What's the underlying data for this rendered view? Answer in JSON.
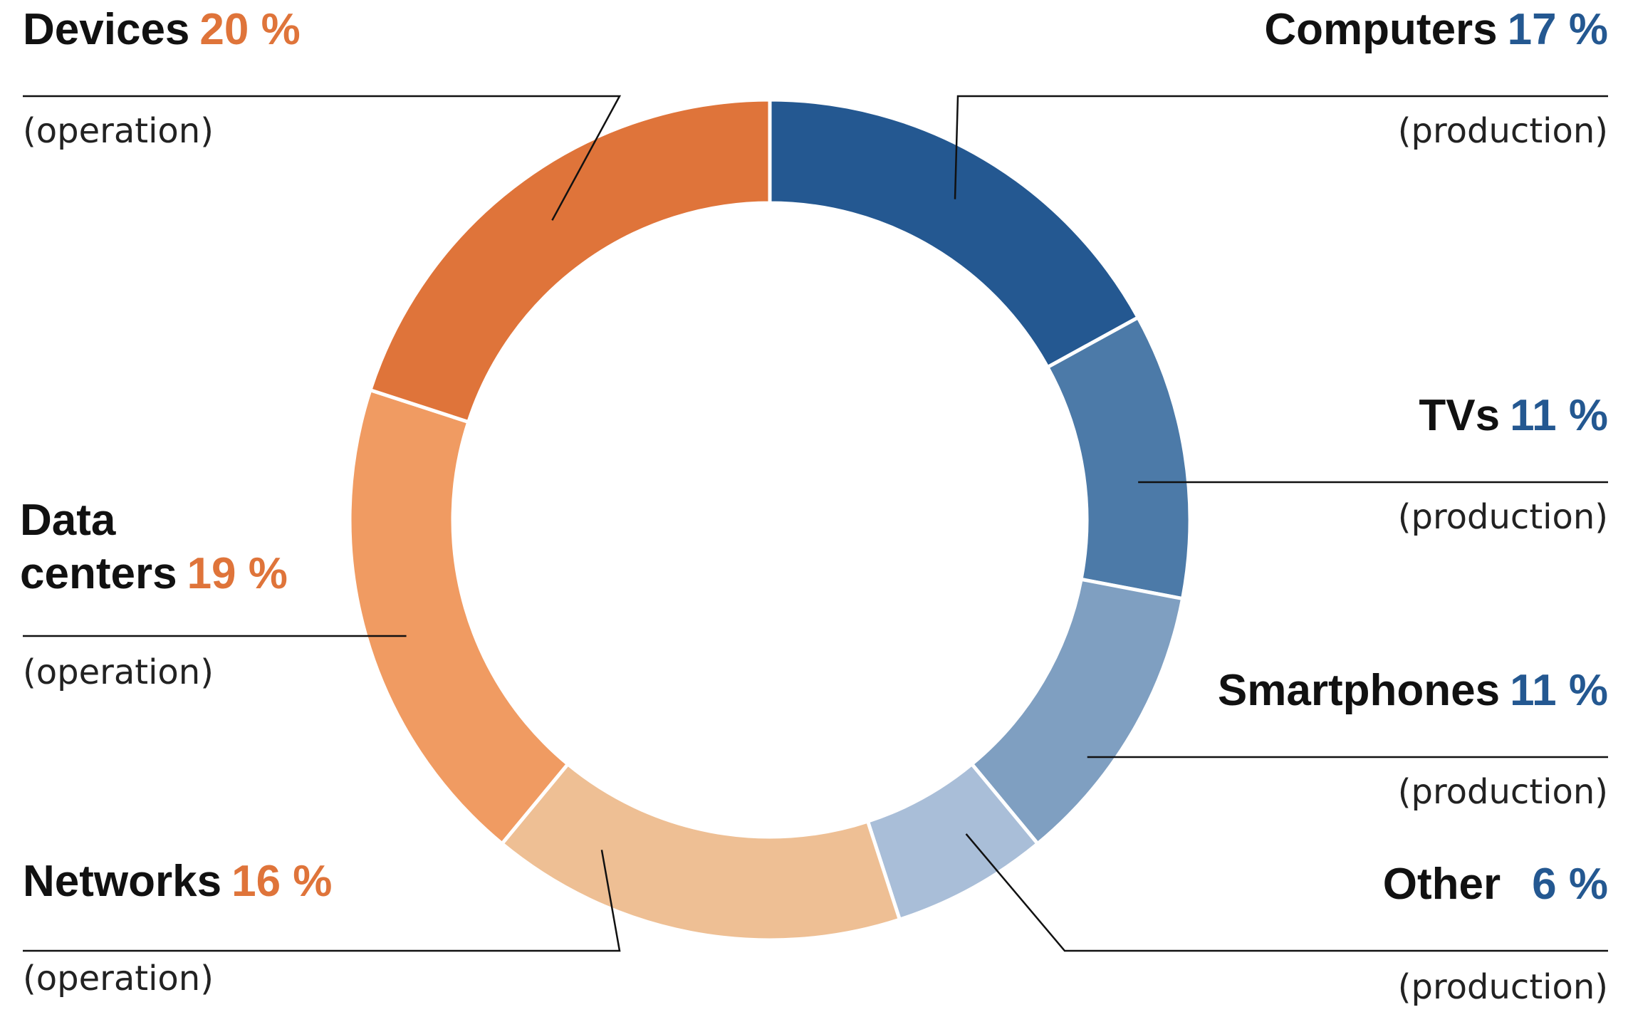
{
  "chart_data": {
    "type": "pie",
    "donut": true,
    "legend": "none",
    "slices": [
      {
        "label": "Computers",
        "value": 17,
        "display": "17 %",
        "note": "(production)",
        "group": "production",
        "color": "#245891"
      },
      {
        "label": "TVs",
        "value": 11,
        "display": "11 %",
        "note": "(production)",
        "group": "production",
        "color": "#4c7aa8"
      },
      {
        "label": "Smartphones",
        "value": 11,
        "display": "11 %",
        "note": "(production)",
        "group": "production",
        "color": "#7f9fc1"
      },
      {
        "label": "Other",
        "value": 6,
        "display": "6 %",
        "note": "(production)",
        "group": "production",
        "color": "#a9bed8"
      },
      {
        "label": "Networks",
        "value": 16,
        "display": "16 %",
        "note": "(operation)",
        "group": "operation",
        "color": "#eebf94"
      },
      {
        "label": "Data centers",
        "value": 19,
        "display": "19 %",
        "note": "(operation)",
        "group": "operation",
        "color": "#f09b62"
      },
      {
        "label": "Devices",
        "value": 20,
        "display": "20 %",
        "note": "(operation)",
        "group": "operation",
        "color": "#df743a"
      }
    ],
    "group_colors": {
      "production": "#245891",
      "operation": "#df743a"
    }
  }
}
